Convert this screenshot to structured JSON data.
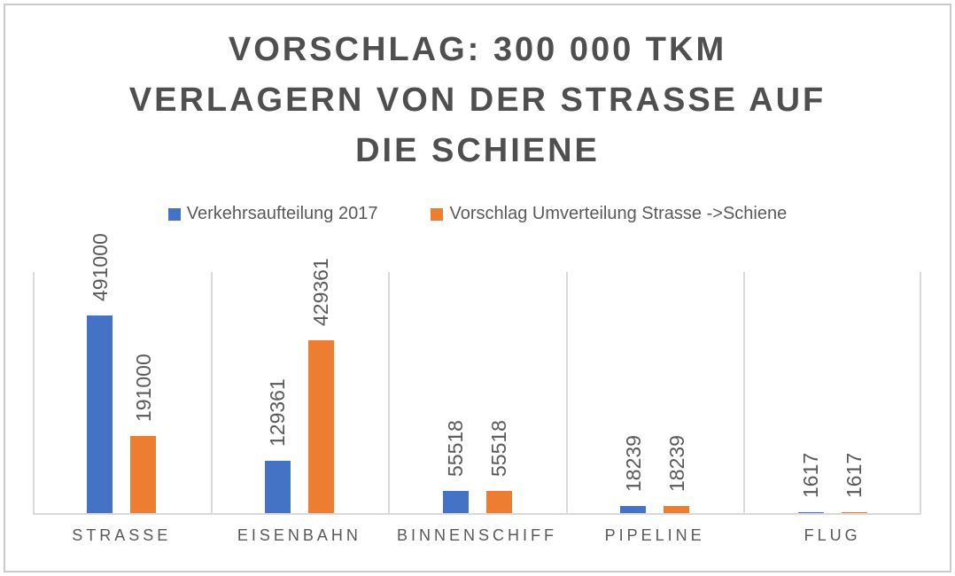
{
  "frame": {
    "border_color": "#cacaca",
    "background": "#ffffff"
  },
  "title": {
    "text": "VORSCHLAG: 300 000 TKM VERLAGERN VON DER STRASSE AUF DIE SCHIENE",
    "lines": [
      "VORSCHLAG: 300 000 TKM",
      "VERLAGERN VON DER STRASSE AUF",
      "DIE SCHIENE"
    ],
    "color": "#4f4f4f"
  },
  "chart_data": {
    "type": "bar",
    "title": "VORSCHLAG: 300 000 TKM VERLAGERN VON DER STRASSE AUF DIE SCHIENE",
    "categories": [
      "STRASSE",
      "EISENBAHN",
      "BINNENSCHIFF",
      "PIPELINE",
      "FLUG"
    ],
    "series": [
      {
        "name": "Verkehrsaufteilung 2017",
        "color": "#4472C4",
        "values": [
          491000,
          129361,
          55518,
          18239,
          1617
        ]
      },
      {
        "name": "Vorschlag Umverteilung Strasse ->Schiene",
        "color": "#ED7D31",
        "values": [
          191000,
          429361,
          55518,
          18239,
          1617
        ]
      }
    ],
    "ylim": [
      0,
      600000
    ],
    "xlabel": "",
    "ylabel": "",
    "data_labels": "values-rotated-90-above-bars",
    "legend_position": "top",
    "gridlines": "vertical-category-separators-only",
    "axis_color": "#D9D9D9",
    "text_color": "#595959"
  }
}
